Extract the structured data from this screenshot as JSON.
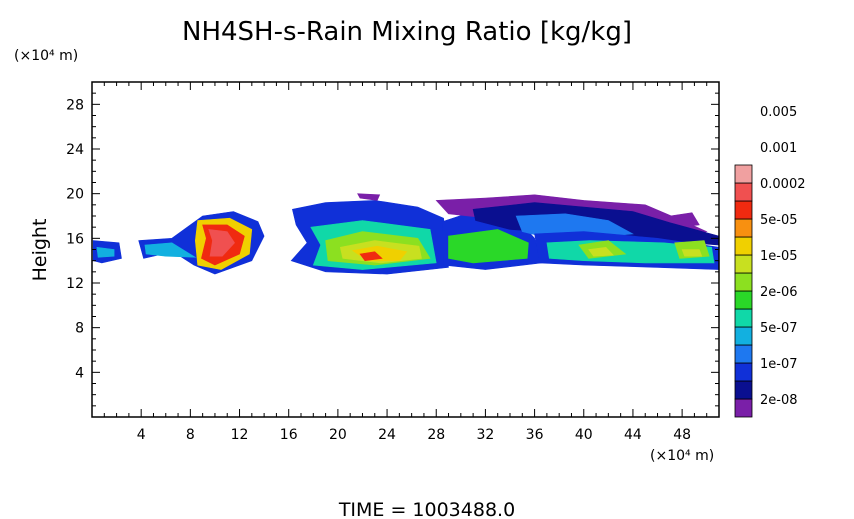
{
  "chart_data": {
    "type": "heatmap",
    "title": "NH4SH-s-Rain Mixing Ratio [kg/kg]",
    "ylabel": "Height",
    "y_unit": "(×10⁴ m)",
    "x_unit": "(×10⁴ m)",
    "xlim": [
      0,
      51
    ],
    "ylim": [
      0,
      30
    ],
    "x_ticks": [
      "4",
      "8",
      "12",
      "16",
      "20",
      "24",
      "28",
      "32",
      "36",
      "40",
      "44",
      "48"
    ],
    "y_ticks": [
      "4",
      "8",
      "12",
      "16",
      "20",
      "24",
      "28"
    ],
    "colorbar": {
      "colors": [
        "#7a1fa8",
        "#0a0f90",
        "#1030d8",
        "#1e78f0",
        "#12b0e0",
        "#10d8a8",
        "#2ad828",
        "#8ce020",
        "#c8e020",
        "#f0d000",
        "#f89010",
        "#f02a10",
        "#f05050",
        "#f0a0a0"
      ],
      "labels": [
        "2e-08",
        "1e-07",
        "5e-07",
        "2e-06",
        "1e-05",
        "5e-05",
        "0.0002",
        "0.001",
        "0.005"
      ]
    },
    "regions": [
      {
        "level": 2,
        "points": [
          [
            0.1,
            15.8
          ],
          [
            2.2,
            15.6
          ],
          [
            2.4,
            14.2
          ],
          [
            0.8,
            13.8
          ],
          [
            0.1,
            14.0
          ]
        ]
      },
      {
        "level": 4,
        "points": [
          [
            0.4,
            15.2
          ],
          [
            1.8,
            15.0
          ],
          [
            1.8,
            14.4
          ],
          [
            0.5,
            14.3
          ]
        ]
      },
      {
        "level": 2,
        "points": [
          [
            3.8,
            15.8
          ],
          [
            6.5,
            16.0
          ],
          [
            9.0,
            18.0
          ],
          [
            11.5,
            18.4
          ],
          [
            13.5,
            17.5
          ],
          [
            14.0,
            16.2
          ],
          [
            13.0,
            14.0
          ],
          [
            10.0,
            12.8
          ],
          [
            8.3,
            13.6
          ],
          [
            6.6,
            14.8
          ],
          [
            4.2,
            14.2
          ]
        ]
      },
      {
        "level": 4,
        "points": [
          [
            4.3,
            15.4
          ],
          [
            6.5,
            15.6
          ],
          [
            8.4,
            14.3
          ],
          [
            6.0,
            14.4
          ],
          [
            4.4,
            14.6
          ]
        ]
      },
      {
        "level": 9,
        "points": [
          [
            8.6,
            17.6
          ],
          [
            11.2,
            17.8
          ],
          [
            13.0,
            16.8
          ],
          [
            12.8,
            14.6
          ],
          [
            10.5,
            13.2
          ],
          [
            8.6,
            13.6
          ],
          [
            8.4,
            15.8
          ]
        ]
      },
      {
        "level": 11,
        "points": [
          [
            9.0,
            17.2
          ],
          [
            11.0,
            17.2
          ],
          [
            12.4,
            16.2
          ],
          [
            12.0,
            14.6
          ],
          [
            10.0,
            13.6
          ],
          [
            8.9,
            14.2
          ],
          [
            9.3,
            16.0
          ]
        ]
      },
      {
        "level": 12,
        "points": [
          [
            9.5,
            16.8
          ],
          [
            11.0,
            16.6
          ],
          [
            11.6,
            15.6
          ],
          [
            10.6,
            14.4
          ],
          [
            9.6,
            14.4
          ],
          [
            9.8,
            15.8
          ]
        ]
      },
      {
        "level": 2,
        "points": [
          [
            16.3,
            18.6
          ],
          [
            19.0,
            19.2
          ],
          [
            23.0,
            19.4
          ],
          [
            26.5,
            18.8
          ],
          [
            28.6,
            17.8
          ],
          [
            29.0,
            13.4
          ],
          [
            24.0,
            12.8
          ],
          [
            19.0,
            13.0
          ],
          [
            16.2,
            14.0
          ],
          [
            17.5,
            15.6
          ],
          [
            16.6,
            17.2
          ]
        ]
      },
      {
        "level": 5,
        "points": [
          [
            17.8,
            17.0
          ],
          [
            22.0,
            17.6
          ],
          [
            27.5,
            16.8
          ],
          [
            28.0,
            13.8
          ],
          [
            22.0,
            13.2
          ],
          [
            18.0,
            13.6
          ],
          [
            18.6,
            15.4
          ]
        ]
      },
      {
        "level": 7,
        "points": [
          [
            19.0,
            15.8
          ],
          [
            22.0,
            16.6
          ],
          [
            26.5,
            16.0
          ],
          [
            27.5,
            14.2
          ],
          [
            23.0,
            13.6
          ],
          [
            19.2,
            14.0
          ]
        ]
      },
      {
        "level": 8,
        "points": [
          [
            20.2,
            15.2
          ],
          [
            23.0,
            15.8
          ],
          [
            26.6,
            15.3
          ],
          [
            26.8,
            14.2
          ],
          [
            23.5,
            13.8
          ],
          [
            20.4,
            14.2
          ]
        ]
      },
      {
        "level": 9,
        "points": [
          [
            21.2,
            14.9
          ],
          [
            23.2,
            15.3
          ],
          [
            25.6,
            14.8
          ],
          [
            25.0,
            14.0
          ],
          [
            22.4,
            14.0
          ]
        ]
      },
      {
        "level": 11,
        "points": [
          [
            21.8,
            14.6
          ],
          [
            23.0,
            14.8
          ],
          [
            23.6,
            14.2
          ],
          [
            22.2,
            14.0
          ]
        ]
      },
      {
        "level": 2,
        "points": [
          [
            28.5,
            17.5
          ],
          [
            31.0,
            18.4
          ],
          [
            33.5,
            18.0
          ],
          [
            35.0,
            17.2
          ],
          [
            36.0,
            16.0
          ],
          [
            36.6,
            13.8
          ],
          [
            32.0,
            13.2
          ],
          [
            28.6,
            13.6
          ]
        ]
      },
      {
        "level": 6,
        "points": [
          [
            29.0,
            16.2
          ],
          [
            33.0,
            16.8
          ],
          [
            35.5,
            15.6
          ],
          [
            35.4,
            14.2
          ],
          [
            31.0,
            13.8
          ],
          [
            29.0,
            14.2
          ]
        ]
      },
      {
        "level": 0,
        "points": [
          [
            28.0,
            19.4
          ],
          [
            32.0,
            19.6
          ],
          [
            36.0,
            19.9
          ],
          [
            40.0,
            19.4
          ],
          [
            45.0,
            19.0
          ],
          [
            48.0,
            17.6
          ],
          [
            50.0,
            16.6
          ],
          [
            49.0,
            16.2
          ],
          [
            44.0,
            17.0
          ],
          [
            40.0,
            17.4
          ],
          [
            34.0,
            17.6
          ],
          [
            29.0,
            18.2
          ]
        ]
      },
      {
        "level": 0,
        "points": [
          [
            47.0,
            18.0
          ],
          [
            48.8,
            18.3
          ],
          [
            49.4,
            17.2
          ],
          [
            47.8,
            17.0
          ]
        ]
      },
      {
        "level": 0,
        "points": [
          [
            21.6,
            20.0
          ],
          [
            23.4,
            19.9
          ],
          [
            23.2,
            19.4
          ],
          [
            21.8,
            19.6
          ]
        ]
      },
      {
        "level": 1,
        "points": [
          [
            31.0,
            18.6
          ],
          [
            36.0,
            19.2
          ],
          [
            40.0,
            18.8
          ],
          [
            44.0,
            18.4
          ],
          [
            47.0,
            17.4
          ],
          [
            51.0,
            16.2
          ],
          [
            51.0,
            15.4
          ],
          [
            46.0,
            15.8
          ],
          [
            40.0,
            16.4
          ],
          [
            34.0,
            16.8
          ],
          [
            31.2,
            17.6
          ]
        ]
      },
      {
        "level": 3,
        "points": [
          [
            34.5,
            18.0
          ],
          [
            38.5,
            18.2
          ],
          [
            42.0,
            17.6
          ],
          [
            44.0,
            16.4
          ],
          [
            38.0,
            15.8
          ],
          [
            35.0,
            16.6
          ]
        ]
      },
      {
        "level": 2,
        "points": [
          [
            36.0,
            16.4
          ],
          [
            40.0,
            16.6
          ],
          [
            46.0,
            16.0
          ],
          [
            51.0,
            15.2
          ],
          [
            51.0,
            13.2
          ],
          [
            46.0,
            13.4
          ],
          [
            40.0,
            13.6
          ],
          [
            36.4,
            13.8
          ]
        ]
      },
      {
        "level": 5,
        "points": [
          [
            37.0,
            15.6
          ],
          [
            40.5,
            15.8
          ],
          [
            46.5,
            15.6
          ],
          [
            50.4,
            15.2
          ],
          [
            50.6,
            13.8
          ],
          [
            45.0,
            13.8
          ],
          [
            40.0,
            14.0
          ],
          [
            37.2,
            14.2
          ]
        ]
      },
      {
        "level": 7,
        "points": [
          [
            39.6,
            15.4
          ],
          [
            42.0,
            15.8
          ],
          [
            43.4,
            14.6
          ],
          [
            40.4,
            14.2
          ]
        ]
      },
      {
        "level": 7,
        "points": [
          [
            47.4,
            15.6
          ],
          [
            49.8,
            15.8
          ],
          [
            50.2,
            14.4
          ],
          [
            47.8,
            14.2
          ]
        ]
      },
      {
        "level": 8,
        "points": [
          [
            40.4,
            15.0
          ],
          [
            41.8,
            15.2
          ],
          [
            42.4,
            14.5
          ],
          [
            40.8,
            14.4
          ]
        ]
      },
      {
        "level": 8,
        "points": [
          [
            48.0,
            15.0
          ],
          [
            49.4,
            15.0
          ],
          [
            49.6,
            14.4
          ],
          [
            48.2,
            14.4
          ]
        ]
      }
    ]
  },
  "footer": {
    "time_label": "TIME  =  1003488.0"
  }
}
